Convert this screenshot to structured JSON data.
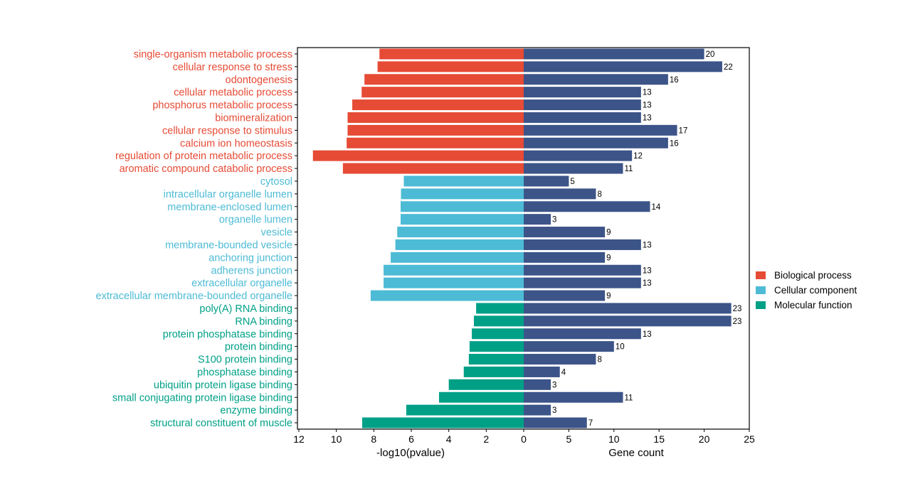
{
  "chart_data": {
    "type": "bar",
    "layout": "mirrored horizontal bars",
    "left_axis": {
      "label": "-log10(pvalue)",
      "range": [
        12,
        0
      ],
      "ticks": [
        "12",
        "10",
        "8",
        "6",
        "4",
        "2",
        "0"
      ]
    },
    "right_axis": {
      "label": "Gene count",
      "range": [
        0,
        25
      ],
      "ticks": [
        "0",
        "5",
        "10",
        "15",
        "20",
        "25"
      ]
    },
    "grid": false,
    "legend_position": "right",
    "groups": [
      {
        "name": "Biological process",
        "color": "#e64b35"
      },
      {
        "name": "Cellular component",
        "color": "#4dbbd5"
      },
      {
        "name": "Molecular function",
        "color": "#00a087"
      }
    ],
    "count_color": "#3c5488",
    "categories": [
      {
        "term": "single-organism metabolic process",
        "group": 0,
        "neglog10p": 7.7,
        "count": 20
      },
      {
        "term": "cellular response to stress",
        "group": 0,
        "neglog10p": 7.8,
        "count": 22
      },
      {
        "term": "odontogenesis",
        "group": 0,
        "neglog10p": 8.5,
        "count": 16
      },
      {
        "term": "cellular metabolic process",
        "group": 0,
        "neglog10p": 8.65,
        "count": 13
      },
      {
        "term": "phosphorus metabolic process",
        "group": 0,
        "neglog10p": 9.15,
        "count": 13
      },
      {
        "term": "biomineralization",
        "group": 0,
        "neglog10p": 9.4,
        "count": 13
      },
      {
        "term": "cellular response to stimulus",
        "group": 0,
        "neglog10p": 9.4,
        "count": 17
      },
      {
        "term": "calcium ion homeostasis",
        "group": 0,
        "neglog10p": 9.45,
        "count": 16
      },
      {
        "term": "regulation of protein metabolic process",
        "group": 0,
        "neglog10p": 11.25,
        "count": 12
      },
      {
        "term": "aromatic compound catabolic process",
        "group": 0,
        "neglog10p": 9.65,
        "count": 11
      },
      {
        "term": "cytosol",
        "group": 1,
        "neglog10p": 6.4,
        "count": 5
      },
      {
        "term": "intracellular organelle lumen",
        "group": 1,
        "neglog10p": 6.55,
        "count": 8
      },
      {
        "term": "membrane-enclosed lumen",
        "group": 1,
        "neglog10p": 6.57,
        "count": 14
      },
      {
        "term": "organelle lumen",
        "group": 1,
        "neglog10p": 6.57,
        "count": 3
      },
      {
        "term": "vesicle",
        "group": 1,
        "neglog10p": 6.75,
        "count": 9
      },
      {
        "term": "membrane-bounded vesicle",
        "group": 1,
        "neglog10p": 6.85,
        "count": 13
      },
      {
        "term": "anchoring junction",
        "group": 1,
        "neglog10p": 7.1,
        "count": 9
      },
      {
        "term": "adherens junction",
        "group": 1,
        "neglog10p": 7.48,
        "count": 13
      },
      {
        "term": "extracellular organelle",
        "group": 1,
        "neglog10p": 7.48,
        "count": 13
      },
      {
        "term": "extracellular membrane-bounded organelle",
        "group": 1,
        "neglog10p": 8.17,
        "count": 9
      },
      {
        "term": "poly(A) RNA binding",
        "group": 2,
        "neglog10p": 2.54,
        "count": 23
      },
      {
        "term": "RNA binding",
        "group": 2,
        "neglog10p": 2.66,
        "count": 23
      },
      {
        "term": "protein phosphatase binding",
        "group": 2,
        "neglog10p": 2.77,
        "count": 13
      },
      {
        "term": "protein binding",
        "group": 2,
        "neglog10p": 2.89,
        "count": 10
      },
      {
        "term": "S100 protein binding",
        "group": 2,
        "neglog10p": 2.93,
        "count": 8
      },
      {
        "term": "phosphatase binding",
        "group": 2,
        "neglog10p": 3.2,
        "count": 4
      },
      {
        "term": "ubiquitin protein ligase binding",
        "group": 2,
        "neglog10p": 4.0,
        "count": 3
      },
      {
        "term": "small conjugating protein ligase binding",
        "group": 2,
        "neglog10p": 4.52,
        "count": 11
      },
      {
        "term": "enzyme binding",
        "group": 2,
        "neglog10p": 6.27,
        "count": 3
      },
      {
        "term": "structural constituent of muscle",
        "group": 2,
        "neglog10p": 8.62,
        "count": 7
      }
    ]
  }
}
